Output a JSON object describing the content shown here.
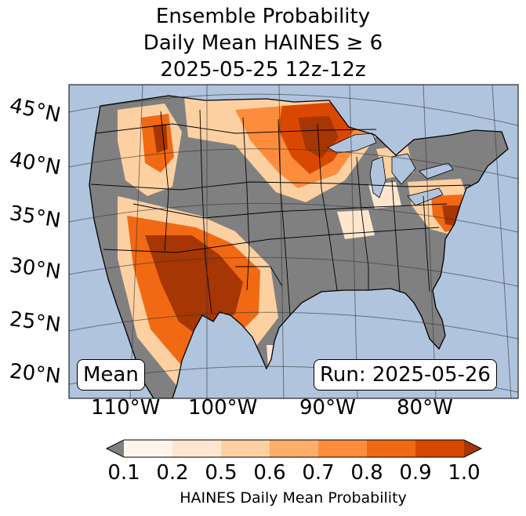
{
  "title": {
    "line1": "Ensemble Probability",
    "line2": "Daily Mean HAINES ≥ 6",
    "line3": "2025-05-25 12z-12z"
  },
  "map": {
    "ocean_color": "#b0c4de",
    "land_color": "#808080",
    "lat_labels": [
      "45°N",
      "40°N",
      "35°N",
      "30°N",
      "25°N",
      "20°N"
    ],
    "lon_labels": [
      "110°W",
      "100°W",
      "90°W",
      "80°W"
    ]
  },
  "annotations": {
    "left": "Mean",
    "right": "Run: 2025-05-26"
  },
  "colorbar": {
    "ticks": [
      "0.1",
      "0.2",
      "0.5",
      "0.6",
      "0.7",
      "0.8",
      "0.9",
      "1.0"
    ],
    "colors": [
      "#fff5eb",
      "#fee6ce",
      "#fdd0a2",
      "#fdae6b",
      "#fd8d3c",
      "#f16913",
      "#d94801",
      "#a63603"
    ],
    "under_color": "#808080",
    "label": "HAINES Daily Mean Probability"
  }
}
